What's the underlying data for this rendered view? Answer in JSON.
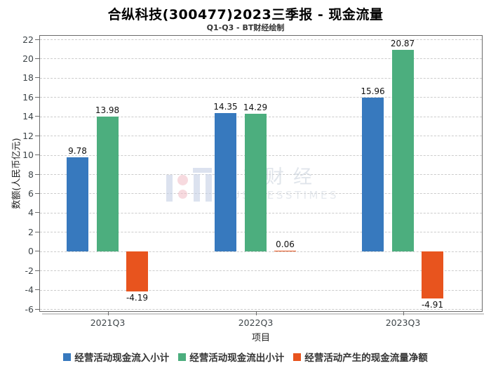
{
  "watermark": {
    "brand": "BT财经",
    "brand_sub": "BUSINESSTIMES"
  },
  "chart_data": {
    "type": "bar",
    "title": "合纵科技(300477)2023三季报 - 现金流量",
    "subtitle": "Q1-Q3 - BT财经绘制",
    "xlabel": "项目",
    "ylabel": "数额(人民币亿元)",
    "categories": [
      "2021Q3",
      "2022Q3",
      "2023Q3"
    ],
    "series": [
      {
        "name": "经营活动现金流入小计",
        "color": "#3779be",
        "values": [
          9.78,
          14.35,
          15.96
        ]
      },
      {
        "name": "经营活动现金流出小计",
        "color": "#4cae7e",
        "values": [
          13.98,
          14.29,
          20.87
        ]
      },
      {
        "name": "经营活动产生的现金流量净额",
        "color": "#e8541e",
        "values": [
          -4.19,
          0.06,
          -4.91
        ]
      }
    ],
    "ylim": [
      -6,
      22
    ],
    "yticks": [
      22,
      20,
      18,
      16,
      14,
      12,
      10,
      8,
      6,
      4,
      2,
      0,
      -2,
      -4,
      -6
    ],
    "grid": true,
    "gridline_style": "dashed",
    "legend_position": "bottom"
  }
}
